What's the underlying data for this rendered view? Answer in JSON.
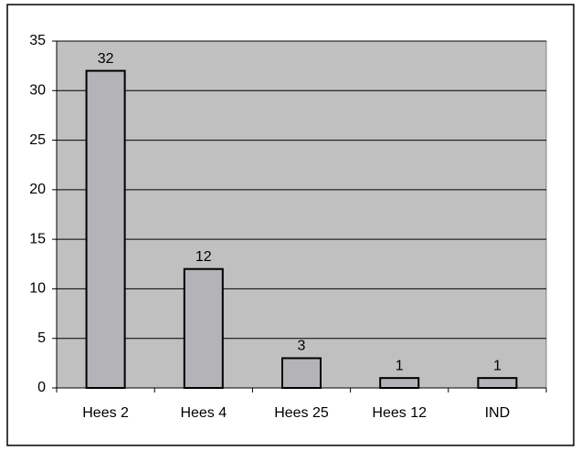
{
  "chart_data": {
    "type": "bar",
    "categories": [
      "Hees 2",
      "Hees 4",
      "Hees 25",
      "Hees 12",
      "IND"
    ],
    "values": [
      32,
      12,
      3,
      1,
      1
    ],
    "color": "#b4b4b8",
    "plot_background": "#c0c0c0",
    "ylim": [
      0,
      35
    ],
    "yticks": [
      0,
      5,
      10,
      15,
      20,
      25,
      30,
      35
    ],
    "grid": true
  }
}
